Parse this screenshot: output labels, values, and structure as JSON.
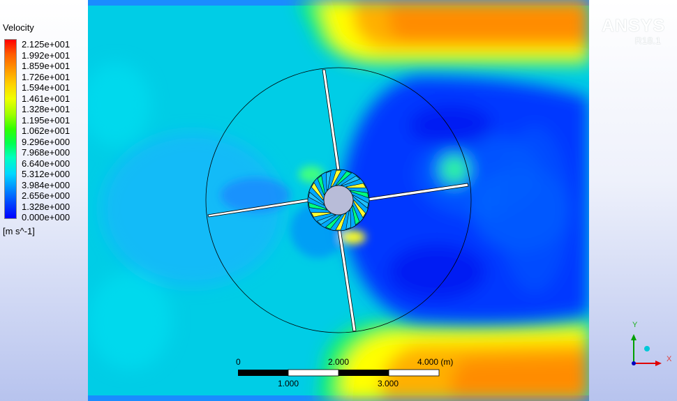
{
  "legend": {
    "title": "Velocity",
    "units": "[m s^-1]",
    "ticks": [
      "2.125e+001",
      "1.992e+001",
      "1.859e+001",
      "1.726e+001",
      "1.594e+001",
      "1.461e+001",
      "1.328e+001",
      "1.195e+001",
      "1.062e+001",
      "9.296e+000",
      "7.968e+000",
      "6.640e+000",
      "5.312e+000",
      "3.984e+000",
      "2.656e+000",
      "1.328e+000",
      "0.000e+000"
    ]
  },
  "brand": {
    "name": "ANSYS",
    "version": "R18.1"
  },
  "scale_bar": {
    "top_labels": [
      "0",
      "2.000",
      "4.000  (m)"
    ],
    "bottom_labels": [
      "1.000",
      "3.000"
    ]
  },
  "triad": {
    "x_label": "X",
    "y_label": "Y"
  },
  "colors": {
    "background_flow": "#00d0e8",
    "wake_low": "#0030ff",
    "jet_high": "#ff9000",
    "axis_x": "#e00000",
    "axis_y": "#00a000",
    "axis_z": "#0000c0"
  }
}
